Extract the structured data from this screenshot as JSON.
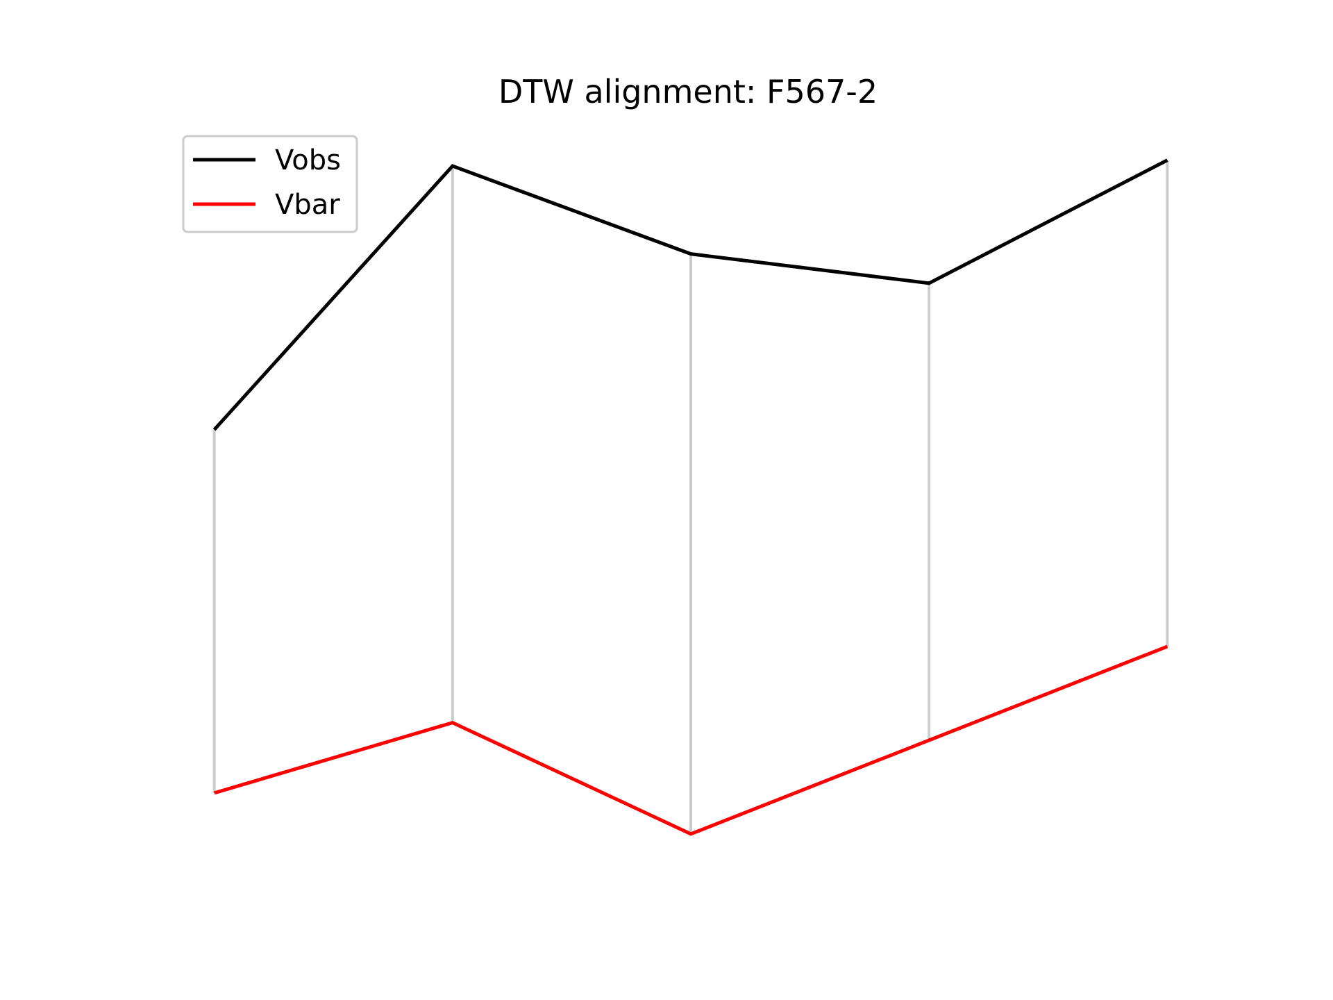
{
  "chart_data": {
    "type": "line",
    "title": "DTW alignment: F567-2",
    "xlabel": "",
    "ylabel": "",
    "axes_visible": false,
    "grid": false,
    "legend_position": "upper-left",
    "x": [
      0,
      1,
      2,
      3,
      4
    ],
    "series": [
      {
        "name": "Vobs",
        "color": "#000000",
        "values": [
          0.74,
          1.19,
          1.04,
          0.99,
          1.2
        ]
      },
      {
        "name": "Vbar",
        "color": "#ff0000",
        "values": [
          0.12,
          0.24,
          0.05,
          0.21,
          0.37
        ]
      }
    ],
    "alignment_pairs": [
      [
        0,
        0
      ],
      [
        1,
        1
      ],
      [
        2,
        2
      ],
      [
        3,
        3
      ],
      [
        4,
        4
      ]
    ],
    "alignment_color": "#cccccc",
    "ylim": [
      -0.02,
      1.26
    ]
  }
}
